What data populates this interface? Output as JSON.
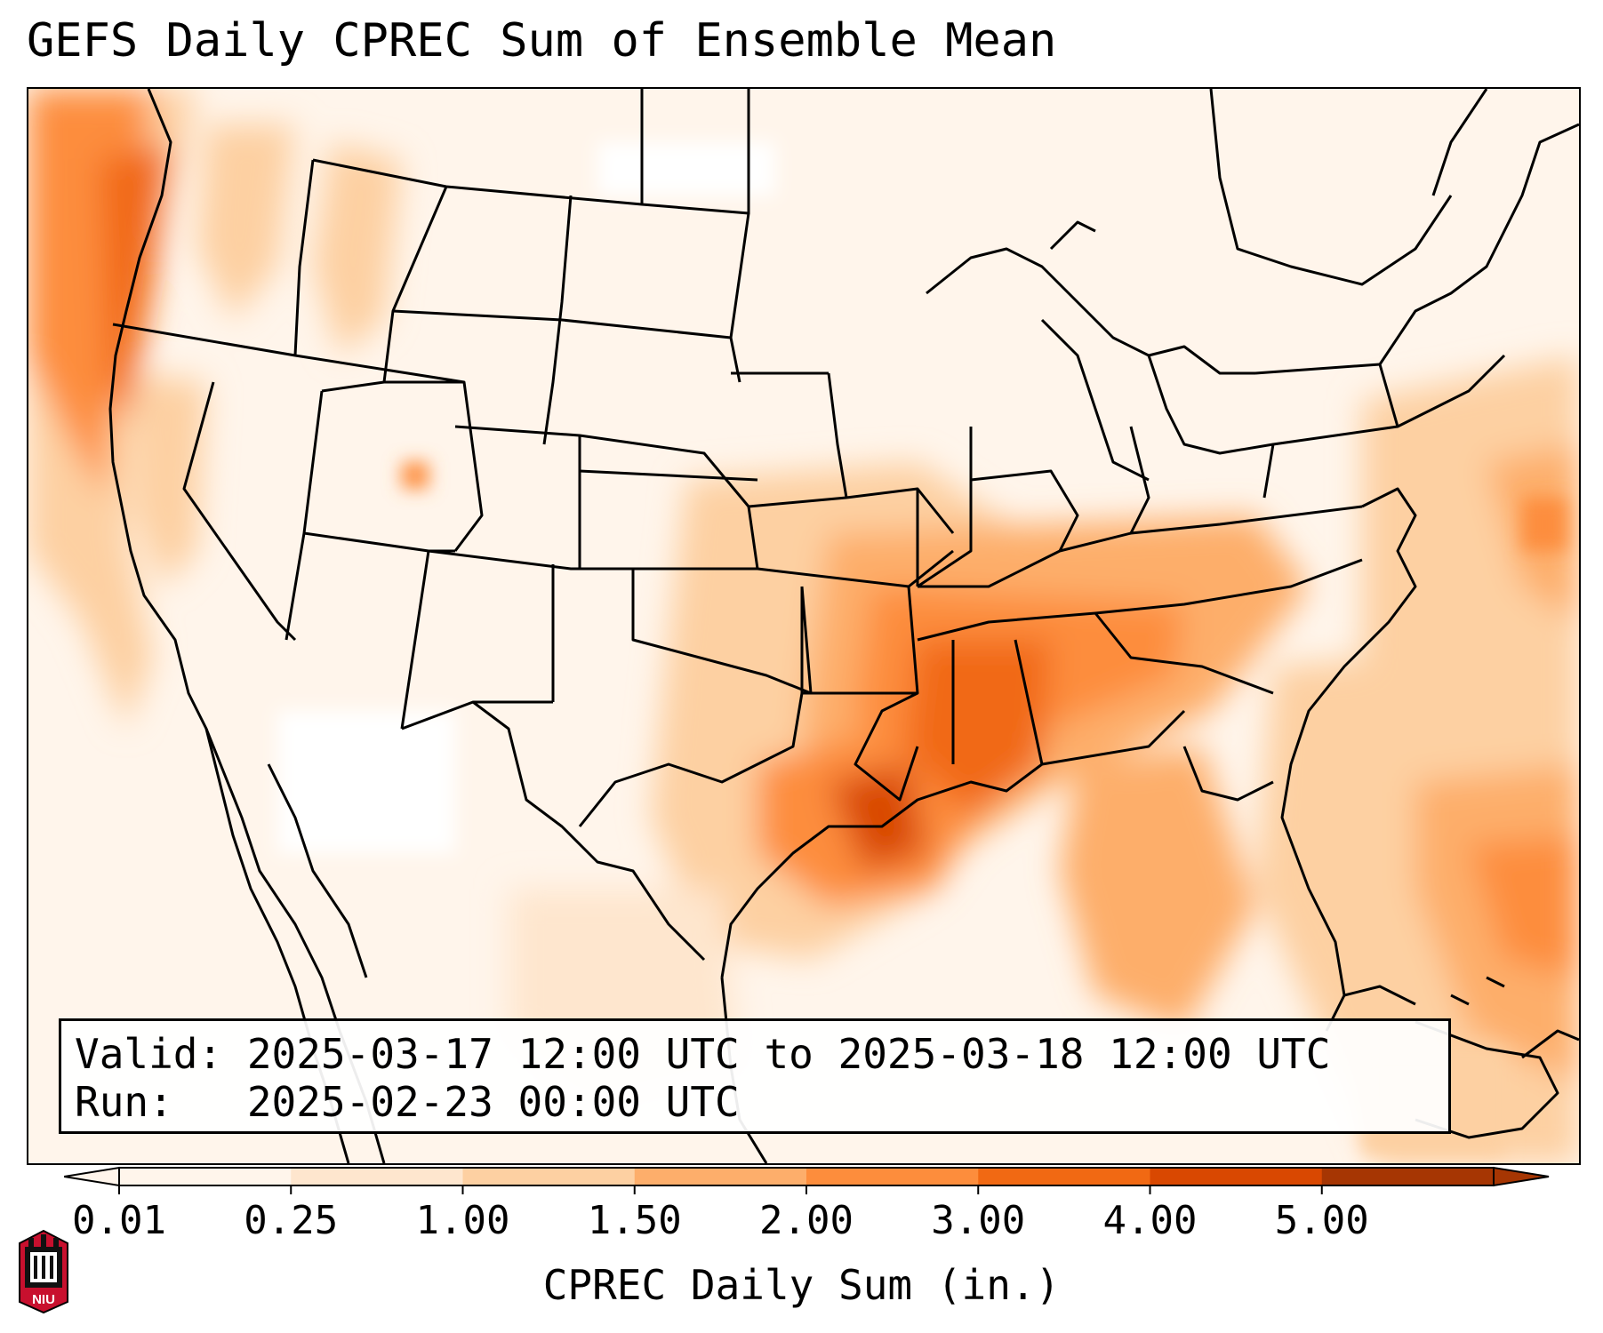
{
  "title": "GEFS Daily CPREC Sum of Ensemble Mean",
  "info": {
    "valid": "Valid: 2025-03-17 12:00 UTC to 2025-03-18 12:00 UTC",
    "run": "Run:   2025-02-23 00:00 UTC"
  },
  "colorbar": {
    "label": "CPREC Daily Sum (in.)",
    "ticks": [
      "0.01",
      "0.25",
      "1.00",
      "1.50",
      "2.00",
      "3.00",
      "4.00",
      "5.00"
    ],
    "colors": [
      "#fff5eb",
      "#fee6ce",
      "#fdd0a2",
      "#fdae6b",
      "#fd8d3c",
      "#f16913",
      "#d94801",
      "#a63603"
    ]
  },
  "logo": {
    "text": "NIU"
  }
}
